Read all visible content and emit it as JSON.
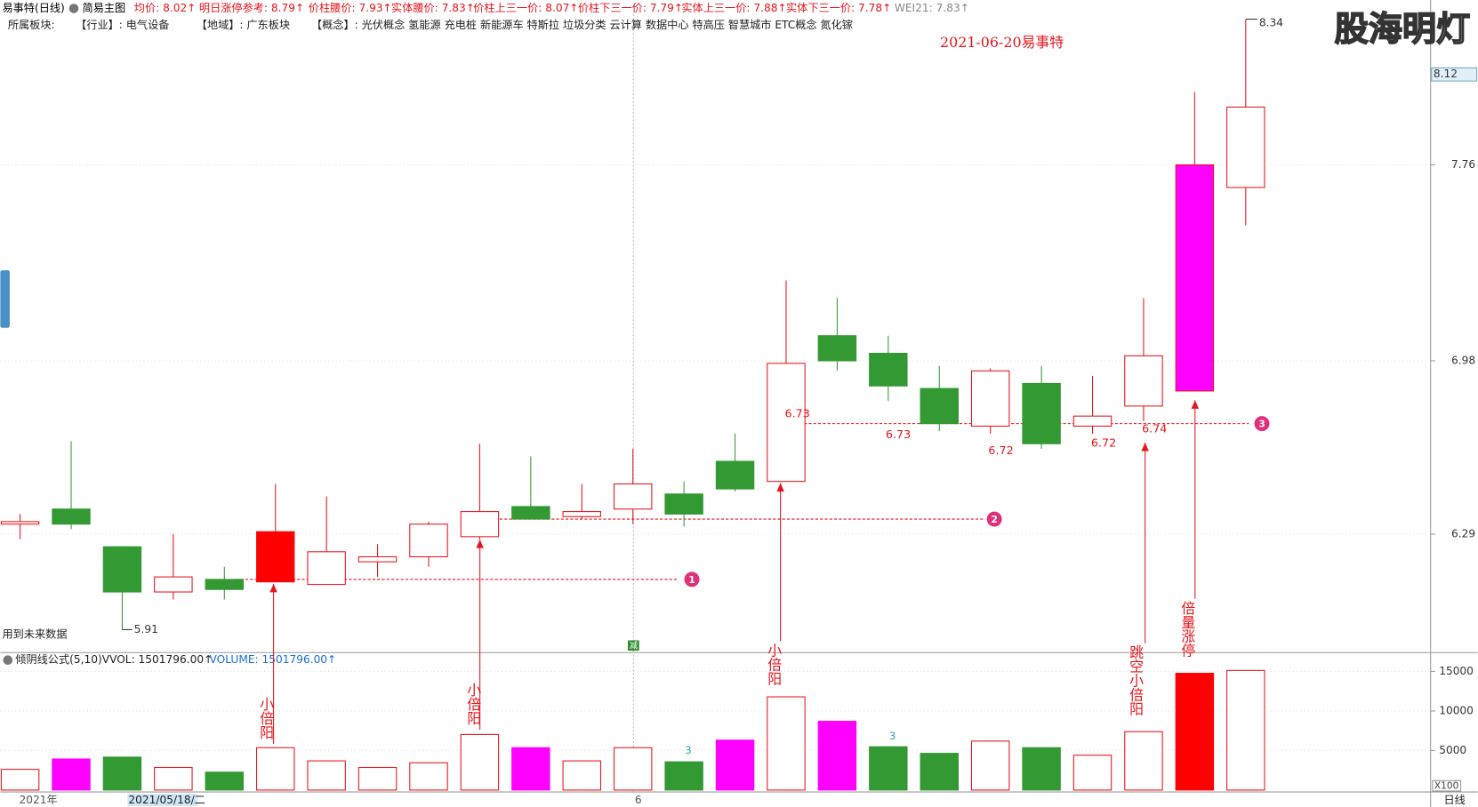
{
  "header": {
    "items": [
      {
        "text": "易事特(日线)",
        "color": "#000000"
      },
      {
        "text": "简易主图",
        "color": "#000000"
      },
      {
        "text": "均价: 8.02↑",
        "color": "#e8141c"
      },
      {
        "text": "明日涨停参考: 8.79↑",
        "color": "#e8141c"
      },
      {
        "text": "价柱腰价: 7.93↑",
        "color": "#e8141c"
      },
      {
        "text": "实体腰价: 7.83↑",
        "color": "#e8141c"
      },
      {
        "text": "价柱上三一价: 8.07↑",
        "color": "#e8141c"
      },
      {
        "text": "价柱下三一价: 7.79↑",
        "color": "#e8141c"
      },
      {
        "text": "实体上三一价: 7.88↑",
        "color": "#e8141c"
      },
      {
        "text": "实体下三一价: 7.78↑",
        "color": "#e8141c"
      },
      {
        "text": "WEI21: 7.83↑",
        "color": "#888888"
      }
    ],
    "sectors": [
      "所属板块:",
      "【行业】: 电气设备",
      "【地域】: 广东板块",
      "【概念】: 光伏概念 氢能源 充电桩 新能源车 特斯拉 垃圾分类 云计算 数据中心 特高压 智慧城市 ETC概念 氮化镓"
    ]
  },
  "watermark": "股海明灯",
  "chart_data": {
    "type": "candlestick",
    "title": "2021-06-20易事特",
    "note": "用到未来数据",
    "reduce_tag": "减",
    "categories": [
      "2021年",
      null,
      "2021/05/18/二",
      null,
      null,
      null,
      null,
      null,
      null,
      null,
      null,
      null,
      "6",
      null,
      null,
      null,
      null,
      null,
      null,
      null,
      null,
      null,
      null,
      null,
      null
    ],
    "period": "日线",
    "open": [
      6.33,
      6.39,
      6.24,
      6.06,
      6.11,
      6.1,
      6.09,
      6.18,
      6.2,
      6.28,
      6.4,
      6.36,
      6.39,
      6.45,
      6.58,
      6.5,
      7.08,
      7.01,
      6.87,
      6.72,
      6.89,
      6.72,
      6.8,
      6.86,
      7.67
    ],
    "high": [
      6.37,
      6.66,
      6.24,
      6.29,
      6.16,
      6.49,
      6.44,
      6.25,
      6.34,
      6.65,
      6.6,
      6.49,
      6.63,
      6.5,
      6.69,
      7.3,
      7.23,
      7.08,
      6.96,
      6.95,
      6.96,
      6.92,
      7.23,
      8.05,
      8.34
    ],
    "low": [
      6.27,
      6.31,
      5.91,
      6.03,
      6.03,
      6.1,
      6.09,
      6.12,
      6.16,
      6.27,
      6.35,
      6.35,
      6.33,
      6.32,
      6.46,
      6.5,
      6.94,
      6.82,
      6.7,
      6.69,
      6.63,
      6.69,
      6.74,
      6.86,
      7.52
    ],
    "close": [
      6.34,
      6.33,
      6.06,
      6.12,
      6.07,
      6.3,
      6.22,
      6.2,
      6.33,
      6.38,
      6.35,
      6.38,
      6.49,
      6.37,
      6.47,
      6.97,
      6.98,
      6.88,
      6.73,
      6.94,
      6.65,
      6.76,
      7.0,
      7.76,
      7.99
    ],
    "body_colors": [
      "#ffffff",
      "#339933",
      "#339933",
      "#ffffff",
      "#339933",
      "#ff0000",
      "#ffffff",
      "#ffffff",
      "#ffffff",
      "#ffffff",
      "#339933",
      "#ffffff",
      "#ffffff",
      "#339933",
      "#339933",
      "#ffffff",
      "#339933",
      "#339933",
      "#339933",
      "#ffffff",
      "#339933",
      "#ffffff",
      "#ffffff",
      "#ff00ff",
      "#ffffff"
    ],
    "up_color": "#e8141c",
    "down_color": "#339933",
    "ylim": [
      5.83,
      8.36
    ],
    "yticks": [
      6.29,
      6.98,
      7.76
    ],
    "last_price": 8.12,
    "reference_lines": [
      {
        "value": 6.11,
        "label": "1"
      },
      {
        "value": 6.35,
        "label": "2"
      },
      {
        "value": 6.73,
        "label": "3"
      }
    ],
    "price_labels": [
      6.73,
      6.73,
      6.72,
      6.72,
      6.74
    ],
    "callouts": [
      "小倍阳",
      "小倍阳",
      "小倍阳",
      "跳空小倍阳",
      "倍量涨停"
    ],
    "volume": {
      "title": "倾阴线公式(5,10)",
      "vvol": "VVOL: 1501796.00↑",
      "vol": "VOLUME: 1501796.00↑",
      "unit": "X100",
      "values": [
        2619,
        3929,
        4167,
        2857,
        2262,
        5357,
        3690,
        2857,
        3452,
        7024,
        5357,
        3690,
        5357,
        3571,
        6310,
        11786,
        8690,
        5476,
        4643,
        6190,
        5357,
        4405,
        7381,
        14762,
        15119
      ],
      "colors": [
        "#ffffff",
        "#ff00ff",
        "#339933",
        "#ffffff",
        "#339933",
        "#ffffff",
        "#ffffff",
        "#ffffff",
        "#ffffff",
        "#ffffff",
        "#ff00ff",
        "#ffffff",
        "#ffffff",
        "#339933",
        "#ff00ff",
        "#ffffff",
        "#ff00ff",
        "#339933",
        "#339933",
        "#ffffff",
        "#339933",
        "#ffffff",
        "#ffffff",
        "#ff0000",
        "#ffffff"
      ],
      "ylim": [
        0,
        17380
      ],
      "yticks": [
        5000,
        10000,
        15000
      ],
      "notes": [
        3,
        3
      ]
    }
  }
}
